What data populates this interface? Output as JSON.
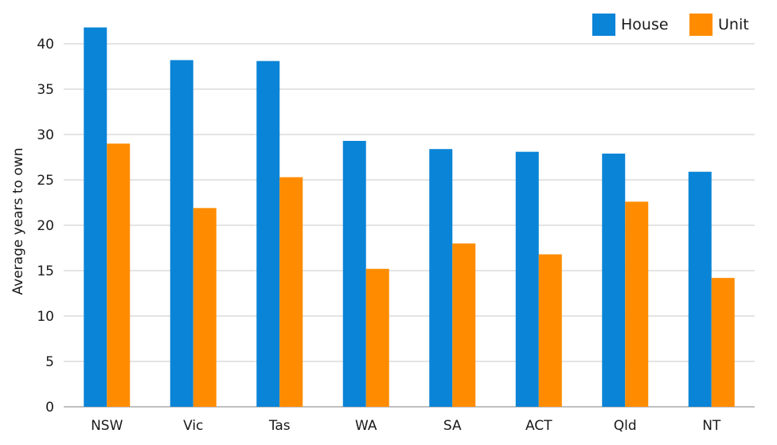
{
  "chart_data": {
    "type": "bar",
    "title": "",
    "xlabel": "",
    "ylabel": "Average years to own",
    "ylim": [
      0,
      45
    ],
    "yticks": [
      0,
      5,
      10,
      15,
      20,
      25,
      30,
      35,
      40
    ],
    "grid": true,
    "legend_position": "top-right",
    "categories": [
      "NSW",
      "Vic",
      "Tas",
      "WA",
      "SA",
      "ACT",
      "Qld",
      "NT"
    ],
    "series": [
      {
        "name": "House",
        "color": "#0a84d6",
        "values": [
          41.8,
          38.2,
          38.1,
          29.3,
          28.4,
          28.1,
          27.9,
          25.9
        ]
      },
      {
        "name": "Unit",
        "color": "#ff8c00",
        "values": [
          29.0,
          21.9,
          25.3,
          15.2,
          18.0,
          16.8,
          22.6,
          14.2
        ]
      }
    ]
  }
}
